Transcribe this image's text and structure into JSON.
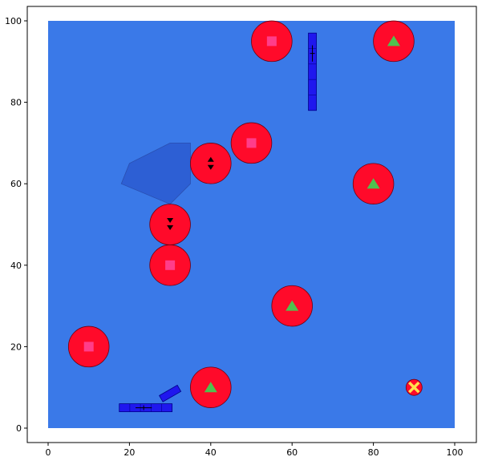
{
  "axes": {
    "x_ticks": [
      "0",
      "20",
      "40",
      "60",
      "80",
      "100"
    ],
    "y_ticks": [
      "0",
      "20",
      "40",
      "60",
      "80",
      "100"
    ],
    "x_range": [
      0,
      100
    ],
    "y_range": [
      0,
      100
    ]
  },
  "colors": {
    "field": "#3a79e8",
    "obstacle": "#ff0a2a",
    "square_marker": "#ff3d8a",
    "triangle_marker": "#4fc24f",
    "obstacle_zone": "#2d5fd4",
    "robot_blue": "#1f17ee",
    "goal_yellow": "#ffe14d"
  },
  "world": {
    "zone_polygon": [
      [
        18,
        60
      ],
      [
        20,
        65
      ],
      [
        30,
        70
      ],
      [
        35,
        70
      ],
      [
        35,
        60
      ],
      [
        30,
        55
      ]
    ],
    "obstacles": [
      {
        "x": 55,
        "y": 95,
        "marker": "square"
      },
      {
        "x": 85,
        "y": 95,
        "marker": "triangle"
      },
      {
        "x": 50,
        "y": 70,
        "marker": "square"
      },
      {
        "x": 40,
        "y": 65,
        "marker": "arrows-both"
      },
      {
        "x": 80,
        "y": 60,
        "marker": "triangle"
      },
      {
        "x": 30,
        "y": 50,
        "marker": "arrows-down"
      },
      {
        "x": 30,
        "y": 40,
        "marker": "square"
      },
      {
        "x": 60,
        "y": 30,
        "marker": "triangle"
      },
      {
        "x": 10,
        "y": 20,
        "marker": "square"
      },
      {
        "x": 40,
        "y": 10,
        "marker": "triangle"
      }
    ],
    "vertical_robot": {
      "x": 65,
      "y_from": 78,
      "y_to": 97
    },
    "horizontal_robot": {
      "x_from": 17.5,
      "x_to": 30.5,
      "y": 5
    },
    "tilted_robot": {
      "x": 30,
      "y": 8.5,
      "angle_deg": -30
    },
    "goal": {
      "x": 90,
      "y": 10
    }
  }
}
